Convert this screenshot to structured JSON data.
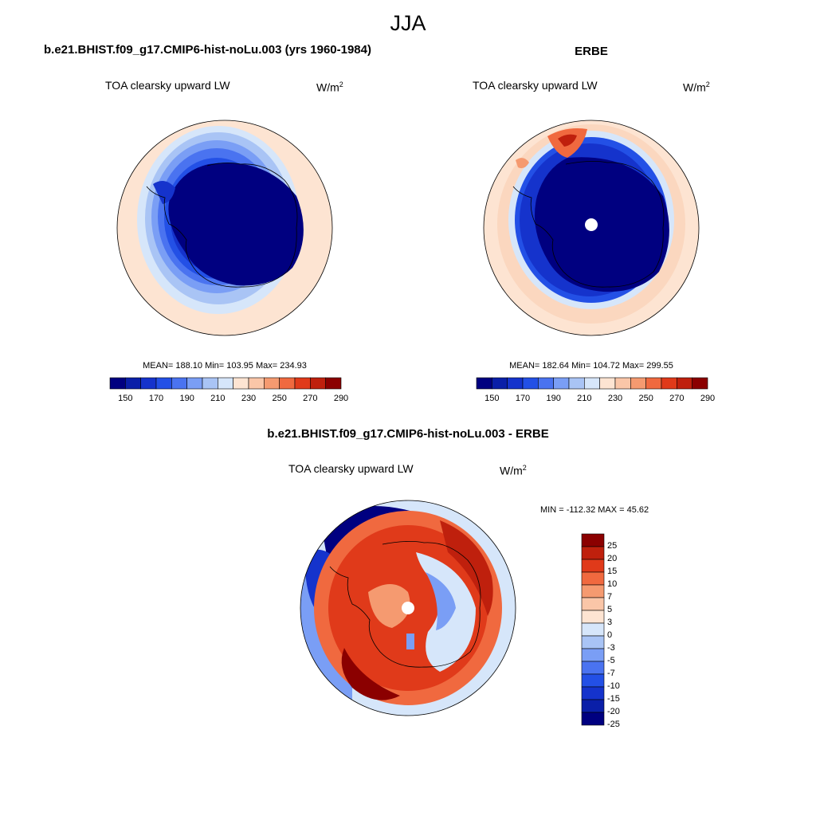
{
  "figure": {
    "title": "JJA",
    "panel1": {
      "case": "b.e21.BHIST.f09_g17.CMIP6-hist-noLu.003 (yrs 1960-1984)",
      "variable": "TOA clearsky upward LW",
      "units_base": "W/m",
      "units_exp": "2",
      "stats": "MEAN= 188.10  Min= 103.95  Max= 234.93"
    },
    "panel2": {
      "case": "ERBE",
      "variable": "TOA clearsky upward LW",
      "units_base": "W/m",
      "units_exp": "2",
      "stats": "MEAN= 182.64  Min= 104.72  Max= 299.55"
    },
    "panel3": {
      "case": "b.e21.BHIST.f09_g17.CMIP6-hist-noLu.003 - ERBE",
      "variable": "TOA clearsky upward LW",
      "units_base": "W/m",
      "units_exp": "2",
      "stats": "MIN = -112.32 MAX =  45.62"
    },
    "colorbar_main": {
      "colors": [
        "#000080",
        "#0a1fa8",
        "#1533cc",
        "#2350e6",
        "#4a73f0",
        "#7a9ef5",
        "#a9c4f5",
        "#d6e6fa",
        "#fde4d2",
        "#fac6a8",
        "#f59a70",
        "#f0693f",
        "#e03a1a",
        "#bf200d",
        "#8b0000"
      ],
      "tick_labels": [
        "150",
        "170",
        "190",
        "210",
        "230",
        "250",
        "270",
        "290"
      ]
    },
    "colorbar_diff": {
      "colors": [
        "#000080",
        "#0a1fa8",
        "#1533cc",
        "#2350e6",
        "#4a73f0",
        "#7a9ef5",
        "#a9c4f5",
        "#d6e6fa",
        "#fde4d2",
        "#fac6a8",
        "#f59a70",
        "#f0693f",
        "#e03a1a",
        "#bf200d",
        "#8b0000"
      ],
      "tick_labels": [
        "25",
        "20",
        "15",
        "10",
        "7",
        "5",
        "3",
        "0",
        "-3",
        "-5",
        "-7",
        "-10",
        "-15",
        "-20",
        "-25"
      ]
    }
  }
}
